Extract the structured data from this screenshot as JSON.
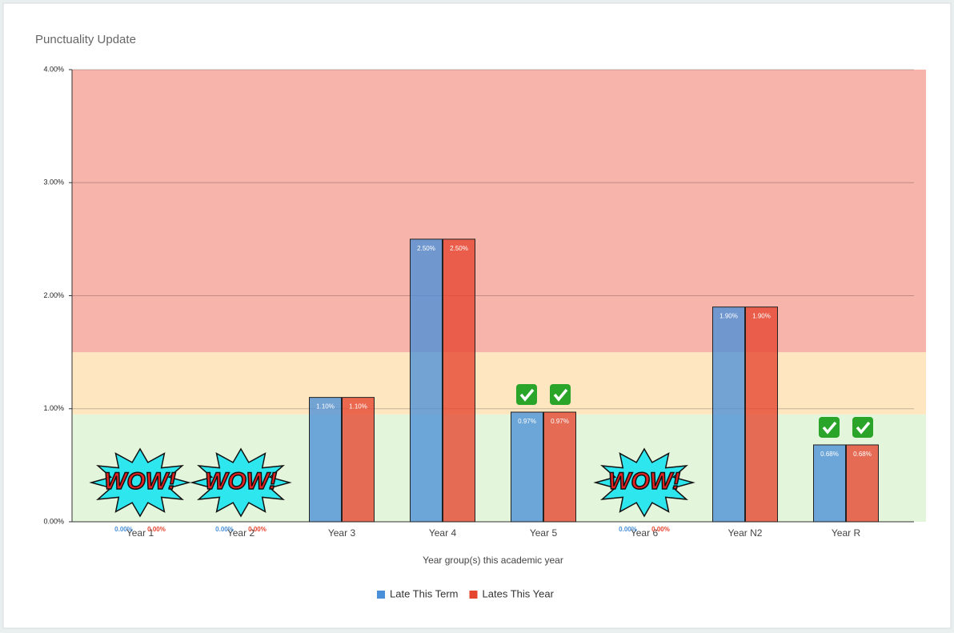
{
  "chart_data": {
    "type": "bar",
    "title": "Punctuality Update",
    "x_label": "Year group(s) this academic year",
    "categories": [
      "Year 1",
      "Year 2",
      "Year 3",
      "Year 4",
      "Year 5",
      "Year 6",
      "Year N2",
      "Year R"
    ],
    "series": [
      {
        "name": "Late This Term",
        "color": "#4a90d9",
        "values": [
          0,
          0,
          1.1,
          2.5,
          0.97,
          0,
          1.9,
          0.68
        ],
        "value_labels": [
          "0.00%",
          "0.00%",
          "1.10%",
          "2.50%",
          "0.97%",
          "0.00%",
          "1.90%",
          "0.68%"
        ]
      },
      {
        "name": "Lates This Year",
        "color": "#e5442e",
        "values": [
          0,
          0,
          1.1,
          2.5,
          0.97,
          0,
          1.9,
          0.68
        ],
        "value_labels": [
          "0.00%",
          "0.00%",
          "1.10%",
          "2.50%",
          "0.97%",
          "0.00%",
          "1.90%",
          "0.68%"
        ]
      }
    ],
    "ylim": [
      0,
      4
    ],
    "yticks": [
      {
        "value": 0,
        "label": "0.00%"
      },
      {
        "value": 1,
        "label": "1.00%"
      },
      {
        "value": 2,
        "label": "2.00%"
      },
      {
        "value": 3,
        "label": "3.00%"
      },
      {
        "value": 4,
        "label": "4.00%"
      }
    ],
    "grid": true,
    "bands": [
      {
        "range": [
          0,
          0.95
        ],
        "color": "#e3f5da"
      },
      {
        "range": [
          0.95,
          1.5
        ],
        "color": "#fde6c0"
      },
      {
        "range": [
          1.5,
          4
        ],
        "color": "#f7b4ab"
      }
    ],
    "annotations": [
      {
        "x": "Year 1",
        "text": "WOW!"
      },
      {
        "x": "Year 2",
        "text": "WOW!"
      },
      {
        "x": "Year 6",
        "text": "WOW!"
      },
      {
        "x": "Year 5",
        "symbol": "check"
      },
      {
        "x": "Year R",
        "symbol": "check"
      }
    ],
    "legend": "bottom"
  }
}
